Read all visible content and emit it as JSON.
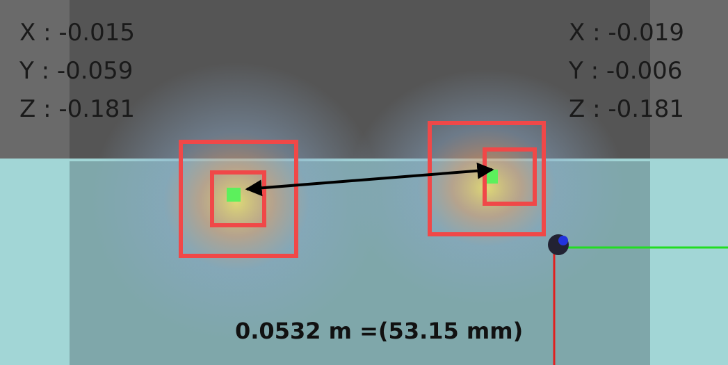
{
  "left_point": {
    "x": "X : -0.015",
    "y": "Y : -0.059",
    "z": "Z : -0.181"
  },
  "right_point": {
    "x": "X : -0.019",
    "y": "Y : -0.006",
    "z": "Z : -0.181"
  },
  "distance_label": "0.0532 m =(53.15 mm)"
}
